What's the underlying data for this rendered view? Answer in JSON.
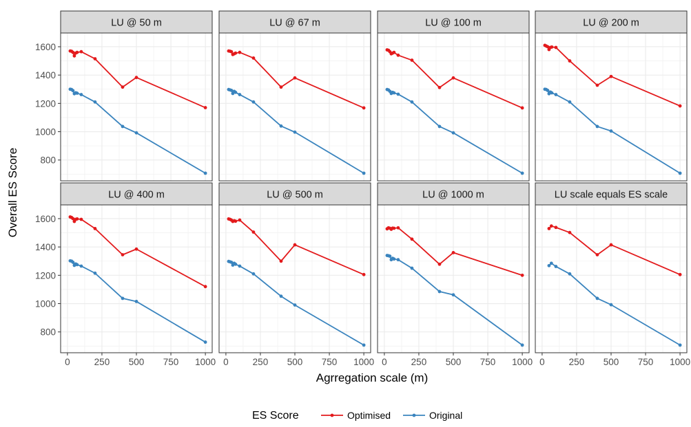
{
  "chart_data": {
    "type": "line",
    "xlabel": "Agrregation scale (m)",
    "ylabel": "Overall ES Score",
    "xlim": [
      0,
      1000
    ],
    "ylim": [
      700,
      1650
    ],
    "x_ticks": [
      0,
      250,
      500,
      750,
      1000
    ],
    "y_ticks": [
      800,
      1000,
      1200,
      1400,
      1600
    ],
    "grid": true,
    "legend": {
      "title": "ES Score",
      "placement": "bottom",
      "entries": [
        {
          "name": "Optimised",
          "color": "#E31A1C"
        },
        {
          "name": "Original",
          "color": "#3A84BE"
        }
      ]
    },
    "panels": [
      {
        "title": "LU @ 50 m",
        "series": [
          {
            "name": "Optimised",
            "x": [
              20,
              30,
              40,
              50,
              60,
              70,
              100,
              200,
              400,
              500,
              1000
            ],
            "y": [
              1570,
              1568,
              1560,
              1535,
              1555,
              1560,
              1565,
              1515,
              1315,
              1383,
              1170
            ]
          },
          {
            "name": "Original",
            "x": [
              20,
              30,
              40,
              50,
              60,
              70,
              100,
              200,
              400,
              500,
              1000
            ],
            "y": [
              1300,
              1298,
              1290,
              1268,
              1275,
              1272,
              1262,
              1210,
              1037,
              992,
              707
            ]
          }
        ]
      },
      {
        "title": "LU @ 67 m",
        "series": [
          {
            "name": "Optimised",
            "x": [
              20,
              30,
              40,
              50,
              60,
              70,
              100,
              200,
              400,
              500,
              1000
            ],
            "y": [
              1570,
              1568,
              1565,
              1545,
              1550,
              1555,
              1560,
              1520,
              1315,
              1380,
              1168
            ]
          },
          {
            "name": "Original",
            "x": [
              20,
              30,
              40,
              50,
              60,
              70,
              100,
              200,
              400,
              500,
              1000
            ],
            "y": [
              1298,
              1295,
              1292,
              1270,
              1285,
              1278,
              1262,
              1210,
              1040,
              997,
              707
            ]
          }
        ]
      },
      {
        "title": "LU @ 100 m",
        "series": [
          {
            "name": "Optimised",
            "x": [
              20,
              30,
              40,
              50,
              60,
              70,
              100,
              200,
              400,
              500,
              1000
            ],
            "y": [
              1578,
              1575,
              1565,
              1550,
              1555,
              1560,
              1540,
              1505,
              1312,
              1380,
              1168
            ]
          },
          {
            "name": "Original",
            "x": [
              20,
              30,
              40,
              50,
              60,
              70,
              100,
              200,
              400,
              500,
              1000
            ],
            "y": [
              1298,
              1295,
              1285,
              1270,
              1278,
              1274,
              1265,
              1210,
              1037,
              992,
              707
            ]
          }
        ]
      },
      {
        "title": "LU @ 200 m",
        "series": [
          {
            "name": "Optimised",
            "x": [
              20,
              30,
              40,
              50,
              60,
              70,
              100,
              200,
              400,
              500,
              1000
            ],
            "y": [
              1610,
              1605,
              1600,
              1580,
              1595,
              1598,
              1595,
              1500,
              1328,
              1390,
              1182
            ]
          },
          {
            "name": "Original",
            "x": [
              20,
              30,
              40,
              50,
              60,
              70,
              100,
              200,
              400,
              500,
              1000
            ],
            "y": [
              1300,
              1298,
              1292,
              1268,
              1280,
              1274,
              1262,
              1210,
              1037,
              1005,
              707
            ]
          }
        ]
      },
      {
        "title": "LU @ 400 m",
        "series": [
          {
            "name": "Optimised",
            "x": [
              20,
              30,
              40,
              50,
              60,
              70,
              100,
              200,
              400,
              500,
              1000
            ],
            "y": [
              1612,
              1608,
              1600,
              1580,
              1595,
              1598,
              1595,
              1530,
              1345,
              1385,
              1120
            ]
          },
          {
            "name": "Original",
            "x": [
              20,
              30,
              40,
              50,
              60,
              70,
              100,
              200,
              400,
              500,
              1000
            ],
            "y": [
              1302,
              1300,
              1292,
              1270,
              1280,
              1275,
              1265,
              1215,
              1037,
              1015,
              728
            ]
          }
        ]
      },
      {
        "title": "LU @ 500 m",
        "series": [
          {
            "name": "Optimised",
            "x": [
              20,
              30,
              40,
              50,
              60,
              70,
              100,
              200,
              400,
              500,
              1000
            ],
            "y": [
              1598,
              1595,
              1590,
              1580,
              1585,
              1582,
              1590,
              1505,
              1300,
              1415,
              1205
            ]
          },
          {
            "name": "Original",
            "x": [
              20,
              30,
              40,
              50,
              60,
              70,
              100,
              200,
              400,
              500,
              1000
            ],
            "y": [
              1298,
              1295,
              1292,
              1272,
              1285,
              1278,
              1265,
              1210,
              1052,
              990,
              707
            ]
          }
        ]
      },
      {
        "title": "LU @ 1000 m",
        "series": [
          {
            "name": "Optimised",
            "x": [
              20,
              30,
              40,
              50,
              60,
              70,
              100,
              200,
              400,
              500,
              1000
            ],
            "y": [
              1528,
              1535,
              1532,
              1525,
              1533,
              1532,
              1535,
              1455,
              1278,
              1360,
              1200
            ]
          },
          {
            "name": "Original",
            "x": [
              20,
              30,
              40,
              50,
              60,
              70,
              100,
              200,
              400,
              500,
              1000
            ],
            "y": [
              1340,
              1338,
              1335,
              1310,
              1320,
              1315,
              1310,
              1250,
              1085,
              1062,
              707
            ]
          }
        ]
      },
      {
        "title": "LU scale equals ES scale",
        "series": [
          {
            "name": "Optimised",
            "x": [
              50,
              67,
              100,
              200,
              400,
              500,
              1000
            ],
            "y": [
              1530,
              1548,
              1538,
              1502,
              1345,
              1415,
              1205
            ]
          },
          {
            "name": "Original",
            "x": [
              50,
              67,
              100,
              200,
              400,
              500,
              1000
            ],
            "y": [
              1268,
              1285,
              1262,
              1210,
              1037,
              992,
              707
            ]
          }
        ]
      }
    ]
  }
}
